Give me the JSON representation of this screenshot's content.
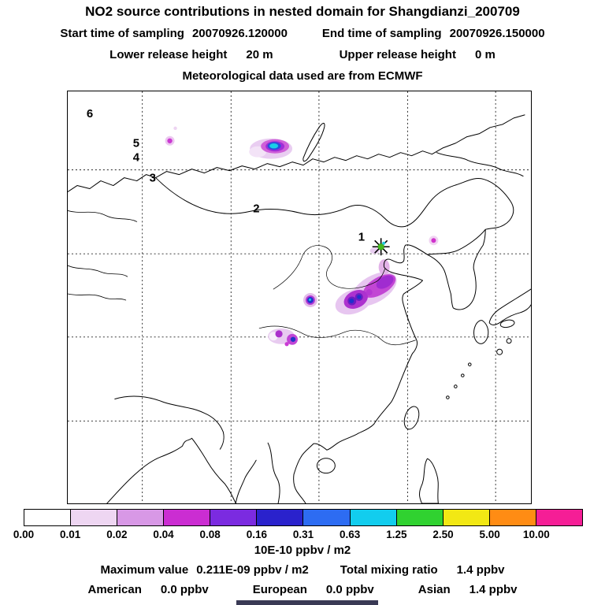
{
  "title": "NO2 source contributions in nested domain for Shangdianzi_200709",
  "header": {
    "start_label": "Start time of sampling",
    "start_value": "20070926.120000",
    "end_label": "End time of sampling",
    "end_value": "20070926.150000",
    "lower_height_label": "Lower release height",
    "lower_height_value": "20 m",
    "upper_height_label": "Upper release height",
    "upper_height_value": "0 m",
    "met_source_line": "Meteorological data used are from ECMWF"
  },
  "map": {
    "nest_labels": [
      "1",
      "2",
      "3",
      "4",
      "5",
      "6"
    ],
    "receptor_marker": "asterisk with green dot at Shangdianzi site"
  },
  "colorbar": {
    "colors": [
      "#ffffff",
      "#eed6f2",
      "#d898e6",
      "#cb2dd2",
      "#7b2be0",
      "#2a22cc",
      "#2d6cf2",
      "#12cdee",
      "#30d230",
      "#f2e814",
      "#ff8c14",
      "#f51e96"
    ],
    "tick_labels": [
      "0.00",
      "0.01",
      "0.02",
      "0.04",
      "0.08",
      "0.16",
      "0.31",
      "0.63",
      "1.25",
      "2.50",
      "5.00",
      "10.00"
    ],
    "units_label": "10E-10 ppbv / m2"
  },
  "footer": {
    "max_label": "Maximum value",
    "max_value": "0.211E-09 ppbv / m2",
    "total_label": "Total mixing ratio",
    "total_value": "1.4 ppbv",
    "american_label": "American",
    "american_value": "0.0 ppbv",
    "european_label": "European",
    "european_value": "0.0 ppbv",
    "asian_label": "Asian",
    "asian_value": "1.4 ppbv"
  },
  "chart_data": {
    "type": "heatmap",
    "title": "NO2 source contributions in nested domain for Shangdianzi_200709",
    "subtitle_lines": [
      "Start time of sampling 20070926.120000",
      "End time of sampling 20070926.150000",
      "Lower release height 20 m",
      "Upper release height 0 m",
      "Meteorological data used are from ECMWF"
    ],
    "units": "10E-10 ppbv / m2",
    "colorscale_boundaries": [
      0.0,
      0.01,
      0.02,
      0.04,
      0.08,
      0.16,
      0.31,
      0.63,
      1.25,
      2.5,
      5.0,
      10.0
    ],
    "colorscale_colors": [
      "#ffffff",
      "#eed6f2",
      "#d898e6",
      "#cb2dd2",
      "#7b2be0",
      "#2a22cc",
      "#2d6cf2",
      "#12cdee",
      "#30d230",
      "#f2e814",
      "#ff8c14",
      "#f51e96"
    ],
    "map_region": "East Asia (approx. 77-137E, 16-56N), dashed lat/lon grid, nested domains numbered 1-6 from receptor outward",
    "receptor_site": "Shangdianzi (asterisk marker with green core, NE of Beijing)",
    "maximum_value": "0.211E-09 ppbv / m2",
    "total_mixing_ratio": "1.4 ppbv",
    "source_contributions": {
      "American": "0.0 ppbv",
      "European": "0.0 ppbv",
      "Asian": "1.4 ppbv"
    },
    "hotspots": [
      {
        "location": "at receptor (asterisk, North China ~117E 40.6N)",
        "level": "0.16-0.63, green/cyan core"
      },
      {
        "location": "plume SW of receptor over North China Plain / Shanxi",
        "level": "purple patch 0.02-0.08 with two dark-blue cores 0.16-0.31"
      },
      {
        "location": "isolated round spot central China (~108E 35N)",
        "level": "blue core 0.16-0.31 in magenta ring"
      },
      {
        "location": "cluster ~104E 30N (Sichuan)",
        "level": "purple patches 0.02-0.08, one blue core 0.16-0.31"
      },
      {
        "location": "Irkutsk / SW of Lake Baikal (~103E 52N)",
        "level": "cyan core 0.31-0.63 in magenta/purple patch"
      },
      {
        "location": "small dot far NW (~89E 51N)",
        "level": "0.02-0.04"
      },
      {
        "location": "small dot NE of receptor (~124E 41N)",
        "level": "0.02-0.04"
      }
    ]
  }
}
